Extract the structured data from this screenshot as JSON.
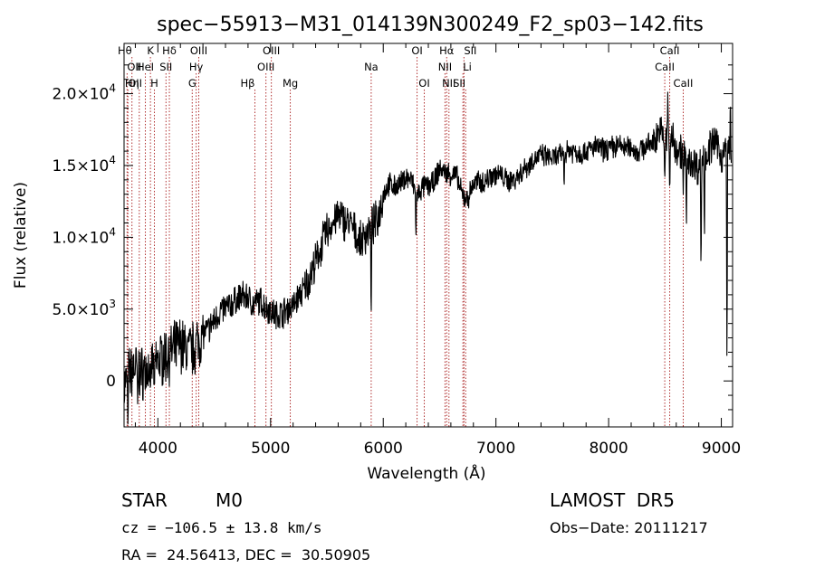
{
  "title": "spec−55913−M31_014139N300249_F2_sp03−142.fits",
  "chart_data": {
    "type": "line",
    "title": "spec−55913−M31_014139N300249_F2_sp03−142.fits",
    "xlabel": "Wavelength (Å)",
    "ylabel": "Flux (relative)",
    "xlim": [
      3700,
      9100
    ],
    "ylim": [
      -3200,
      23500
    ],
    "x_ticks": [
      4000,
      5000,
      6000,
      7000,
      8000,
      9000
    ],
    "x_tick_labels": [
      "4000",
      "5000",
      "6000",
      "7000",
      "8000",
      "9000"
    ],
    "y_ticks": [
      0,
      5000,
      10000,
      15000,
      20000
    ],
    "y_tick_labels": [
      {
        "mant": "0",
        "exp": ""
      },
      {
        "mant": "5.0×10",
        "exp": "3"
      },
      {
        "mant": "1.0×10",
        "exp": "4"
      },
      {
        "mant": "1.5×10",
        "exp": "4"
      },
      {
        "mant": "2.0×10",
        "exp": "4"
      }
    ],
    "grid": false,
    "series_color": "#000000",
    "line_color": "#b03030",
    "continuum": [
      [
        3700,
        -300
      ],
      [
        3750,
        500
      ],
      [
        3800,
        1000
      ],
      [
        3850,
        500
      ],
      [
        3900,
        800
      ],
      [
        3950,
        1200
      ],
      [
        4000,
        1400
      ],
      [
        4050,
        1700
      ],
      [
        4100,
        1800
      ],
      [
        4150,
        2200
      ],
      [
        4200,
        2600
      ],
      [
        4250,
        2200
      ],
      [
        4300,
        2100
      ],
      [
        4350,
        2700
      ],
      [
        4400,
        3200
      ],
      [
        4450,
        3600
      ],
      [
        4500,
        4200
      ],
      [
        4550,
        4800
      ],
      [
        4600,
        5100
      ],
      [
        4650,
        5300
      ],
      [
        4700,
        5700
      ],
      [
        4750,
        5900
      ],
      [
        4800,
        5800
      ],
      [
        4850,
        5300
      ],
      [
        4900,
        5600
      ],
      [
        4950,
        5200
      ],
      [
        5000,
        4900
      ],
      [
        5050,
        4600
      ],
      [
        5100,
        4700
      ],
      [
        5150,
        5000
      ],
      [
        5200,
        5200
      ],
      [
        5250,
        5900
      ],
      [
        5300,
        6400
      ],
      [
        5350,
        7300
      ],
      [
        5400,
        8200
      ],
      [
        5450,
        9400
      ],
      [
        5500,
        10400
      ],
      [
        5550,
        11000
      ],
      [
        5600,
        11500
      ],
      [
        5650,
        11200
      ],
      [
        5700,
        11000
      ],
      [
        5750,
        10300
      ],
      [
        5800,
        9600
      ],
      [
        5850,
        10300
      ],
      [
        5900,
        10800
      ],
      [
        5950,
        11200
      ],
      [
        6000,
        13000
      ],
      [
        6050,
        13700
      ],
      [
        6100,
        13500
      ],
      [
        6150,
        13700
      ],
      [
        6200,
        14200
      ],
      [
        6250,
        14000
      ],
      [
        6300,
        12800
      ],
      [
        6350,
        13500
      ],
      [
        6400,
        13600
      ],
      [
        6450,
        13800
      ],
      [
        6500,
        14800
      ],
      [
        6550,
        14500
      ],
      [
        6600,
        14400
      ],
      [
        6650,
        14300
      ],
      [
        6700,
        12900
      ],
      [
        6750,
        12700
      ],
      [
        6800,
        13700
      ],
      [
        6850,
        13900
      ],
      [
        6900,
        13800
      ],
      [
        6950,
        14300
      ],
      [
        7000,
        14400
      ],
      [
        7050,
        14300
      ],
      [
        7100,
        13900
      ],
      [
        7150,
        14000
      ],
      [
        7200,
        14300
      ],
      [
        7250,
        14800
      ],
      [
        7300,
        15100
      ],
      [
        7350,
        15500
      ],
      [
        7400,
        15700
      ],
      [
        7450,
        15600
      ],
      [
        7500,
        15500
      ],
      [
        7550,
        15600
      ],
      [
        7600,
        15900
      ],
      [
        7650,
        16100
      ],
      [
        7700,
        16000
      ],
      [
        7750,
        15800
      ],
      [
        7800,
        16000
      ],
      [
        7850,
        16200
      ],
      [
        7900,
        16300
      ],
      [
        7950,
        16100
      ],
      [
        8000,
        16200
      ],
      [
        8050,
        16300
      ],
      [
        8100,
        16400
      ],
      [
        8150,
        16200
      ],
      [
        8200,
        16300
      ],
      [
        8250,
        15900
      ],
      [
        8300,
        16200
      ],
      [
        8350,
        16400
      ],
      [
        8400,
        16700
      ],
      [
        8450,
        17500
      ],
      [
        8500,
        16700
      ],
      [
        8550,
        17100
      ],
      [
        8600,
        16200
      ],
      [
        8650,
        16000
      ],
      [
        8700,
        15100
      ],
      [
        8750,
        15300
      ],
      [
        8800,
        14800
      ],
      [
        8850,
        15600
      ],
      [
        8900,
        16200
      ],
      [
        8950,
        16700
      ],
      [
        9000,
        15600
      ],
      [
        9050,
        16200
      ],
      [
        9100,
        16000
      ]
    ],
    "features": [
      {
        "x": 3734,
        "y": -3000
      },
      {
        "x": 3820,
        "y": -1800
      },
      {
        "x": 3934,
        "y": -1600
      },
      {
        "x": 3969,
        "y": -1200
      },
      {
        "x": 5893,
        "y": 3600
      },
      {
        "x": 6290,
        "y": 9800
      },
      {
        "x": 7605,
        "y": 13300
      },
      {
        "x": 8498,
        "y": 13800
      },
      {
        "x": 8525,
        "y": 20400
      },
      {
        "x": 8542,
        "y": 12400
      },
      {
        "x": 8662,
        "y": 13000
      },
      {
        "x": 8690,
        "y": 10500
      },
      {
        "x": 8820,
        "y": 6800
      },
      {
        "x": 8850,
        "y": 9600
      },
      {
        "x": 9050,
        "y": -300
      },
      {
        "x": 9080,
        "y": 19800
      }
    ],
    "noise_seed": 7,
    "lines": [
      {
        "x": 3727,
        "label": "OII",
        "row": 1,
        "align": "start"
      },
      {
        "x": 3734,
        "label": "OII",
        "row": 2,
        "align": "start"
      },
      {
        "x": 3770,
        "label": "Hθ",
        "row": 0,
        "align": "end"
      },
      {
        "x": 3835,
        "label": "Hη",
        "row": 2,
        "align": "end"
      },
      {
        "x": 3889,
        "label": "HeI",
        "row": 1,
        "align": "middle"
      },
      {
        "x": 3934,
        "label": "K",
        "row": 0,
        "align": "middle"
      },
      {
        "x": 3969,
        "label": "H",
        "row": 2,
        "align": "middle"
      },
      {
        "x": 4072,
        "label": "SII",
        "row": 1,
        "align": "middle"
      },
      {
        "x": 4102,
        "label": "Hδ",
        "row": 0,
        "align": "middle"
      },
      {
        "x": 4305,
        "label": "G",
        "row": 2,
        "align": "middle"
      },
      {
        "x": 4340,
        "label": "Hγ",
        "row": 1,
        "align": "middle"
      },
      {
        "x": 4363,
        "label": "OIII",
        "row": 0,
        "align": "middle"
      },
      {
        "x": 4861,
        "label": "Hβ",
        "row": 2,
        "align": "end"
      },
      {
        "x": 4959,
        "label": "OIII",
        "row": 1,
        "align": "middle"
      },
      {
        "x": 5007,
        "label": "OIII",
        "row": 0,
        "align": "middle"
      },
      {
        "x": 5175,
        "label": "Mg",
        "row": 2,
        "align": "middle"
      },
      {
        "x": 5893,
        "label": "Na",
        "row": 1,
        "align": "middle"
      },
      {
        "x": 6300,
        "label": "OI",
        "row": 0,
        "align": "middle"
      },
      {
        "x": 6364,
        "label": "OI",
        "row": 2,
        "align": "middle"
      },
      {
        "x": 6548,
        "label": "NII",
        "row": 1,
        "align": "middle"
      },
      {
        "x": 6563,
        "label": "Hα",
        "row": 0,
        "align": "middle"
      },
      {
        "x": 6583,
        "label": "NII",
        "row": 2,
        "align": "middle"
      },
      {
        "x": 6707,
        "label": "Li",
        "row": 1,
        "align": "start"
      },
      {
        "x": 6716,
        "label": "SII",
        "row": 0,
        "align": "start"
      },
      {
        "x": 6731,
        "label": "SII",
        "row": 2,
        "align": "end"
      },
      {
        "x": 8498,
        "label": "CaII",
        "row": 1,
        "align": "middle"
      },
      {
        "x": 8542,
        "label": "CaII",
        "row": 0,
        "align": "middle"
      },
      {
        "x": 8662,
        "label": "CaII",
        "row": 2,
        "align": "middle"
      }
    ]
  },
  "info": {
    "object_class": "STAR",
    "subclass": "M0",
    "survey": "LAMOST  DR5",
    "cz": "cz = −106.5 ± 13.8 km/s",
    "obs_date": "Obs−Date: 20111217",
    "radec": "RA =  24.56413, DEC =  30.50905"
  }
}
